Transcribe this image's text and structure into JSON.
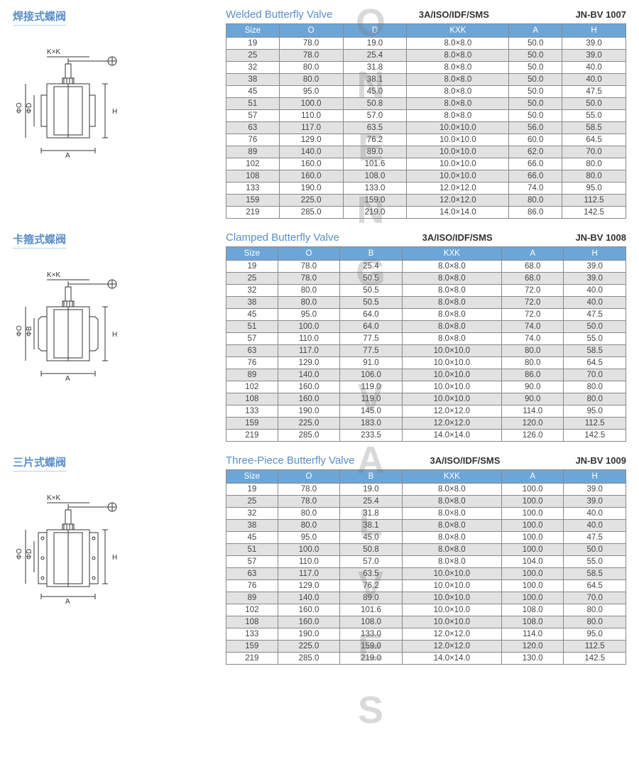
{
  "watermark_text": "JONENG VALVES",
  "sections": [
    {
      "cn_title": "焊接式蝶阀",
      "en_title": "Welded Butterfly Valve",
      "spec": "3A/ISO/IDF/SMS",
      "model": "JN-BV 1007",
      "diagram": {
        "type": "welded",
        "labels": {
          "top": "K×K",
          "sideO": "ΦO",
          "sideD": "ΦD",
          "bottom": "A",
          "right": "H"
        }
      },
      "columns": [
        "Size",
        "O",
        "D",
        "KXK",
        "A",
        "H"
      ],
      "rows": [
        [
          "19",
          "78.0",
          "19.0",
          "8.0×8.0",
          "50.0",
          "39.0"
        ],
        [
          "25",
          "78.0",
          "25.4",
          "8.0×8.0",
          "50.0",
          "39.0"
        ],
        [
          "32",
          "80.0",
          "31.8",
          "8.0×8.0",
          "50.0",
          "40.0"
        ],
        [
          "38",
          "80.0",
          "38.1",
          "8.0×8.0",
          "50.0",
          "40.0"
        ],
        [
          "45",
          "95.0",
          "45.0",
          "8.0×8.0",
          "50.0",
          "47.5"
        ],
        [
          "51",
          "100.0",
          "50.8",
          "8.0×8.0",
          "50.0",
          "50.0"
        ],
        [
          "57",
          "110.0",
          "57.0",
          "8.0×8.0",
          "50.0",
          "55.0"
        ],
        [
          "63",
          "117.0",
          "63.5",
          "10.0×10.0",
          "56.0",
          "58.5"
        ],
        [
          "76",
          "129.0",
          "76.2",
          "10.0×10.0",
          "60.0",
          "64.5"
        ],
        [
          "89",
          "140.0",
          "89.0",
          "10.0×10.0",
          "62.0",
          "70.0"
        ],
        [
          "102",
          "160.0",
          "101.6",
          "10.0×10.0",
          "66.0",
          "80.0"
        ],
        [
          "108",
          "160.0",
          "108.0",
          "10.0×10.0",
          "66.0",
          "80.0"
        ],
        [
          "133",
          "190.0",
          "133.0",
          "12.0×12.0",
          "74.0",
          "95.0"
        ],
        [
          "159",
          "225.0",
          "159.0",
          "12.0×12.0",
          "80.0",
          "112.5"
        ],
        [
          "219",
          "285.0",
          "219.0",
          "14.0×14.0",
          "86.0",
          "142.5"
        ]
      ]
    },
    {
      "cn_title": "卡箍式蝶阀",
      "en_title": "Clamped Butterfly Valve",
      "spec": "3A/ISO/IDF/SMS",
      "model": "JN-BV 1008",
      "diagram": {
        "type": "clamped",
        "labels": {
          "top": "K×K",
          "sideO": "ΦO",
          "sideD": "ΦB",
          "bottom": "A",
          "right": "H"
        }
      },
      "columns": [
        "Size",
        "O",
        "B",
        "KXK",
        "A",
        "H"
      ],
      "rows": [
        [
          "19",
          "78.0",
          "25.4",
          "8.0×8.0",
          "68.0",
          "39.0"
        ],
        [
          "25",
          "78.0",
          "50.5",
          "8.0×8.0",
          "68.0",
          "39.0"
        ],
        [
          "32",
          "80.0",
          "50.5",
          "8.0×8.0",
          "72.0",
          "40.0"
        ],
        [
          "38",
          "80.0",
          "50.5",
          "8.0×8.0",
          "72.0",
          "40.0"
        ],
        [
          "45",
          "95.0",
          "64.0",
          "8.0×8.0",
          "72.0",
          "47.5"
        ],
        [
          "51",
          "100.0",
          "64.0",
          "8.0×8.0",
          "74.0",
          "50.0"
        ],
        [
          "57",
          "110.0",
          "77.5",
          "8.0×8.0",
          "74.0",
          "55.0"
        ],
        [
          "63",
          "117.0",
          "77.5",
          "10.0×10.0",
          "80.0",
          "58.5"
        ],
        [
          "76",
          "129.0",
          "91.0",
          "10.0×10.0",
          "80.0",
          "64.5"
        ],
        [
          "89",
          "140.0",
          "106.0",
          "10.0×10.0",
          "86.0",
          "70.0"
        ],
        [
          "102",
          "160.0",
          "119.0",
          "10.0×10.0",
          "90.0",
          "80.0"
        ],
        [
          "108",
          "160.0",
          "119.0",
          "10.0×10.0",
          "90.0",
          "80.0"
        ],
        [
          "133",
          "190.0",
          "145.0",
          "12.0×12.0",
          "114.0",
          "95.0"
        ],
        [
          "159",
          "225.0",
          "183.0",
          "12.0×12.0",
          "120.0",
          "112.5"
        ],
        [
          "219",
          "285.0",
          "233.5",
          "14.0×14.0",
          "126.0",
          "142.5"
        ]
      ]
    },
    {
      "cn_title": "三片式蝶阀",
      "en_title": "Three-Piece Butterfly Valve",
      "spec": "3A/ISO/IDF/SMS",
      "model": "JN-BV 1009",
      "diagram": {
        "type": "three-piece",
        "labels": {
          "top": "K×K",
          "sideO": "ΦO",
          "sideD": "ΦD",
          "bottom": "A",
          "right": "H"
        }
      },
      "columns": [
        "Size",
        "O",
        "B",
        "KXK",
        "A",
        "H"
      ],
      "rows": [
        [
          "19",
          "78.0",
          "19.0",
          "8.0×8.0",
          "100.0",
          "39.0"
        ],
        [
          "25",
          "78.0",
          "25.4",
          "8.0×8.0",
          "100.0",
          "39.0"
        ],
        [
          "32",
          "80.0",
          "31.8",
          "8.0×8.0",
          "100.0",
          "40.0"
        ],
        [
          "38",
          "80.0",
          "38.1",
          "8.0×8.0",
          "100.0",
          "40.0"
        ],
        [
          "45",
          "95.0",
          "45.0",
          "8.0×8.0",
          "100.0",
          "47.5"
        ],
        [
          "51",
          "100.0",
          "50.8",
          "8.0×8.0",
          "100.0",
          "50.0"
        ],
        [
          "57",
          "110.0",
          "57.0",
          "8.0×8.0",
          "104.0",
          "55.0"
        ],
        [
          "63",
          "117.0",
          "63.5",
          "10.0×10.0",
          "100.0",
          "58.5"
        ],
        [
          "76",
          "129.0",
          "76.2",
          "10.0×10.0",
          "100.0",
          "64.5"
        ],
        [
          "89",
          "140.0",
          "89.0",
          "10.0×10.0",
          "100.0",
          "70.0"
        ],
        [
          "102",
          "160.0",
          "101.6",
          "10.0×10.0",
          "108.0",
          "80.0"
        ],
        [
          "108",
          "160.0",
          "108.0",
          "10.0×10.0",
          "108.0",
          "80.0"
        ],
        [
          "133",
          "190.0",
          "133.0",
          "12.0×12.0",
          "114.0",
          "95.0"
        ],
        [
          "159",
          "225.0",
          "159.0",
          "12.0×12.0",
          "120.0",
          "112.5"
        ],
        [
          "219",
          "285.0",
          "219.0",
          "14.0×14.0",
          "130.0",
          "142.5"
        ]
      ]
    }
  ],
  "style": {
    "header_bg": "#6ca6d9",
    "header_fg": "#ffffff",
    "row_odd_bg": "#ffffff",
    "row_even_bg": "#e2e2e2",
    "border_color": "#888888",
    "title_color": "#5a8fc7",
    "font_size_table": 11.5,
    "font_size_title": 15
  }
}
